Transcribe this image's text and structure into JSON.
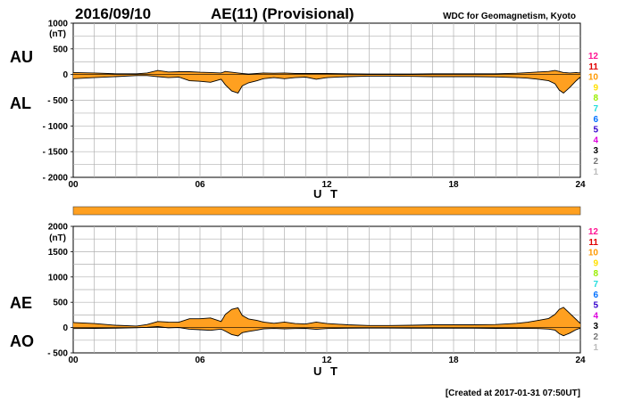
{
  "header": {
    "date": "2016/09/10",
    "index_title": "AE(11) (Provisional)",
    "organization": "WDC for Geomagnetism, Kyoto"
  },
  "footer": {
    "created": "[Created at 2017-01-31 07:50UT]"
  },
  "station_legend": [
    {
      "label": "12",
      "color": "#ff1493"
    },
    {
      "label": "11",
      "color": "#e00000"
    },
    {
      "label": "10",
      "color": "#ff9900"
    },
    {
      "label": "9",
      "color": "#ffe000"
    },
    {
      "label": "8",
      "color": "#99ee00"
    },
    {
      "label": "7",
      "color": "#22dddd"
    },
    {
      "label": "6",
      "color": "#0070ff"
    },
    {
      "label": "5",
      "color": "#3300cc"
    },
    {
      "label": "4",
      "color": "#dd00dd"
    },
    {
      "label": "3",
      "color": "#000000"
    },
    {
      "label": "2",
      "color": "#777777"
    },
    {
      "label": "1",
      "color": "#bbbbbb"
    }
  ],
  "availability_bar": {
    "coverage_fraction": 1.0,
    "color": "#ffa020"
  },
  "chart_data": [
    {
      "type": "area",
      "name": "au-al",
      "title": "AU / AL",
      "labels": [
        "AU",
        "AL"
      ],
      "unit": "(nT)",
      "xlabel": "U T",
      "x_ticks": [
        "00",
        "06",
        "12",
        "18",
        "24"
      ],
      "y_ticks": [
        "1000",
        "500",
        "0",
        "- 500",
        "- 1000",
        "- 1500",
        "- 2000"
      ],
      "y_tick_values": [
        1000,
        500,
        0,
        -500,
        -1000,
        -1500,
        -2000
      ],
      "xlim": [
        0,
        24
      ],
      "ylim": [
        -2000,
        1000
      ],
      "fill_color": "#ffa020",
      "x": [
        0,
        1,
        2,
        3,
        3.5,
        4,
        4.5,
        5,
        5.5,
        6,
        6.5,
        7,
        7.2,
        7.5,
        7.8,
        8,
        8.3,
        8.7,
        9,
        9.5,
        10,
        10.5,
        11,
        11.5,
        12,
        13,
        14,
        15,
        16,
        17,
        18,
        19,
        20,
        21,
        21.5,
        22,
        22.5,
        22.8,
        23,
        23.2,
        23.5,
        23.8,
        24
      ],
      "series": [
        {
          "name": "AU",
          "values": [
            40,
            30,
            15,
            15,
            30,
            80,
            50,
            55,
            55,
            45,
            40,
            30,
            60,
            45,
            30,
            20,
            10,
            20,
            30,
            25,
            30,
            20,
            20,
            20,
            20,
            15,
            10,
            10,
            10,
            15,
            15,
            15,
            15,
            25,
            35,
            50,
            60,
            80,
            60,
            40,
            30,
            40,
            30
          ]
        },
        {
          "name": "AL",
          "values": [
            -80,
            -60,
            -40,
            -20,
            -20,
            -40,
            -60,
            -50,
            -120,
            -130,
            -150,
            -90,
            -200,
            -320,
            -360,
            -220,
            -160,
            -120,
            -80,
            -60,
            -80,
            -60,
            -50,
            -90,
            -60,
            -40,
            -30,
            -30,
            -35,
            -40,
            -40,
            -40,
            -45,
            -60,
            -70,
            -90,
            -120,
            -180,
            -300,
            -360,
            -250,
            -120,
            -50
          ]
        }
      ]
    },
    {
      "type": "area",
      "name": "ae-ao",
      "title": "AE / AO",
      "labels": [
        "AE",
        "AO"
      ],
      "unit": "(nT)",
      "xlabel": "U T",
      "x_ticks": [
        "00",
        "06",
        "12",
        "18",
        "24"
      ],
      "y_ticks": [
        "2000",
        "1500",
        "1000",
        "500",
        "0",
        "- 500"
      ],
      "y_tick_values": [
        2000,
        1500,
        1000,
        500,
        0,
        -500
      ],
      "xlim": [
        0,
        24
      ],
      "ylim": [
        -500,
        2000
      ],
      "fill_color": "#ffa020",
      "x": [
        0,
        1,
        2,
        3,
        3.5,
        4,
        4.5,
        5,
        5.5,
        6,
        6.5,
        7,
        7.2,
        7.5,
        7.8,
        8,
        8.3,
        8.7,
        9,
        9.5,
        10,
        10.5,
        11,
        11.5,
        12,
        13,
        14,
        15,
        16,
        17,
        18,
        19,
        20,
        21,
        21.5,
        22,
        22.5,
        22.8,
        23,
        23.2,
        23.5,
        23.8,
        24
      ],
      "series": [
        {
          "name": "AE",
          "values": [
            100,
            80,
            45,
            30,
            60,
            120,
            110,
            105,
            175,
            175,
            190,
            120,
            260,
            360,
            390,
            240,
            170,
            140,
            110,
            85,
            110,
            80,
            70,
            110,
            80,
            55,
            40,
            40,
            45,
            55,
            55,
            55,
            60,
            85,
            105,
            140,
            180,
            260,
            360,
            400,
            280,
            160,
            80
          ]
        },
        {
          "name": "AO",
          "values": [
            -20,
            -15,
            -12,
            -3,
            5,
            20,
            -5,
            2,
            -32,
            -42,
            -55,
            -30,
            -70,
            -137,
            -165,
            -100,
            -75,
            -50,
            -25,
            -17,
            -25,
            -20,
            -15,
            -35,
            -20,
            -12,
            -10,
            -10,
            -12,
            -12,
            -12,
            -12,
            -15,
            -18,
            -17,
            -20,
            -30,
            -50,
            -120,
            -160,
            -110,
            -40,
            -10
          ]
        }
      ]
    }
  ]
}
